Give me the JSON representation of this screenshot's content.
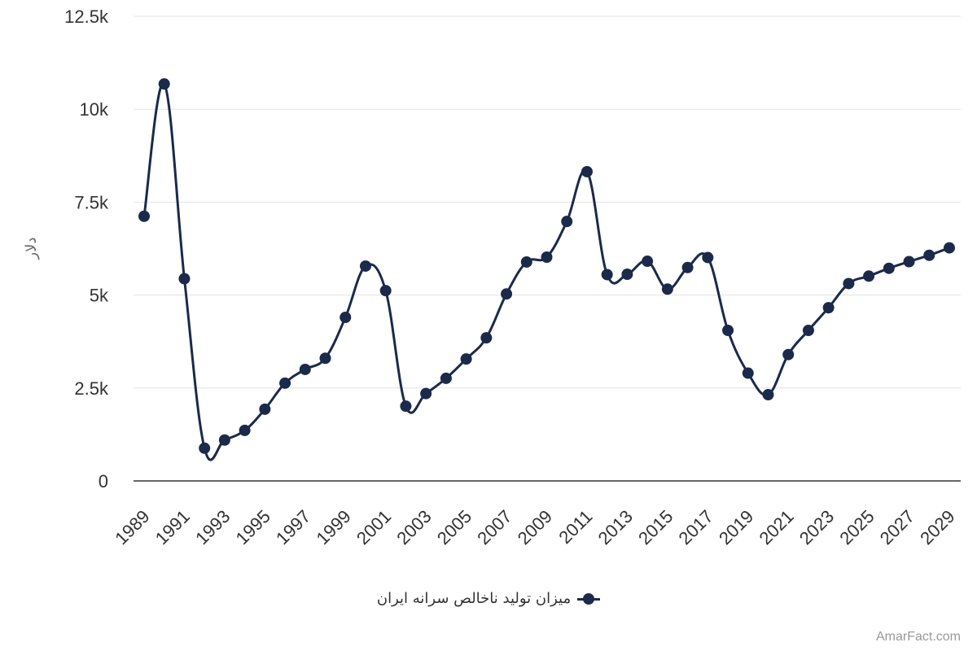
{
  "chart_data": {
    "type": "line",
    "title": "",
    "xlabel": "",
    "ylabel": "دلار",
    "x": [
      1989,
      1990,
      1991,
      1992,
      1993,
      1994,
      1995,
      1996,
      1997,
      1998,
      1999,
      2000,
      2001,
      2002,
      2003,
      2004,
      2005,
      2006,
      2007,
      2008,
      2009,
      2010,
      2011,
      2012,
      2013,
      2014,
      2015,
      2016,
      2017,
      2018,
      2019,
      2020,
      2021,
      2022,
      2023,
      2024,
      2025,
      2026,
      2027,
      2028,
      2029
    ],
    "x_tick_labels": [
      "1989",
      "1991",
      "1993",
      "1995",
      "1997",
      "1999",
      "2001",
      "2003",
      "2005",
      "2007",
      "2009",
      "2011",
      "2013",
      "2015",
      "2017",
      "2019",
      "2021",
      "2023",
      "2025",
      "2027",
      "2029"
    ],
    "ylim": [
      0,
      12500
    ],
    "y_ticks": [
      0,
      2500,
      5000,
      7500,
      10000,
      12500
    ],
    "y_tick_labels": [
      "0",
      "2.5k",
      "5k",
      "7.5k",
      "10k",
      "12.5k"
    ],
    "grid": true,
    "legend_position": "bottom",
    "series": [
      {
        "name": "میزان تولید ناخالص سرانه ایران",
        "color": "#1b2a4a",
        "values": [
          7120,
          10680,
          5440,
          880,
          1100,
          1360,
          1930,
          2630,
          3000,
          3300,
          4400,
          5780,
          5120,
          2010,
          2350,
          2760,
          3280,
          3850,
          5030,
          5890,
          6020,
          6980,
          8320,
          5550,
          5560,
          5910,
          5160,
          5740,
          6010,
          4050,
          2900,
          2320,
          3400,
          4050,
          4660,
          5310,
          5510,
          5720,
          5900,
          6070,
          6270
        ]
      }
    ]
  },
  "credit": "AmarFact.com"
}
